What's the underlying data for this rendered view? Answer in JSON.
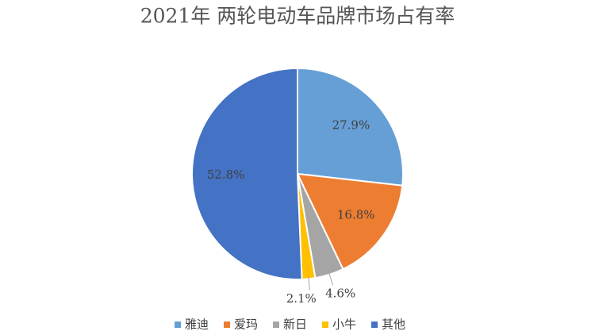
{
  "chart_data": {
    "type": "pie",
    "title": "2021年 两轮电动车品牌市场占有率",
    "categories": [
      "雅迪",
      "爱玛",
      "新日",
      "小牛",
      "其他"
    ],
    "values": [
      27.9,
      16.8,
      4.6,
      2.1,
      52.8
    ],
    "value_labels": [
      "27.9%",
      "16.8%",
      "4.6%",
      "2.1%",
      "52.8%"
    ],
    "colors": [
      "#659fd6",
      "#ed7d31",
      "#a5a5a5",
      "#ffc000",
      "#4472c4"
    ],
    "legend": "bottom"
  }
}
